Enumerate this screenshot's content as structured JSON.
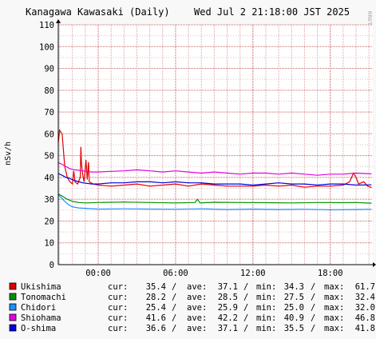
{
  "title": "Kanagawa Kawasaki (Daily)",
  "datetime": "Wed Jul  2 21:18:00 JST 2025",
  "credit": "RRDTOOL / TOBI OETIKER",
  "chart_data": {
    "type": "line",
    "title": "Kanagawa Kawasaki (Daily)",
    "ylabel": "nSv/h",
    "xlabel": "",
    "ylim": [
      0,
      110
    ],
    "yticks": [
      0,
      10,
      20,
      30,
      40,
      50,
      60,
      70,
      80,
      90,
      100,
      110
    ],
    "x_range_hours": [
      -3.1,
      21.3
    ],
    "xticks": [
      {
        "label": "00:00",
        "hour": 0
      },
      {
        "label": "06:00",
        "hour": 6
      },
      {
        "label": "12:00",
        "hour": 12
      },
      {
        "label": "18:00",
        "hour": 18
      }
    ],
    "grid": true,
    "legend_position": "bottom",
    "series": [
      {
        "name": "Ukishima",
        "color": "#e00000",
        "cur": "35.4",
        "ave": "37.1",
        "min": "34.3",
        "max": "61.7",
        "points": [
          [
            -3.1,
            56
          ],
          [
            -3.0,
            61.7
          ],
          [
            -2.8,
            60
          ],
          [
            -2.6,
            45
          ],
          [
            -2.4,
            40
          ],
          [
            -2.2,
            38
          ],
          [
            -2.0,
            37
          ],
          [
            -1.9,
            43
          ],
          [
            -1.8,
            38
          ],
          [
            -1.6,
            37
          ],
          [
            -1.4,
            40
          ],
          [
            -1.35,
            54
          ],
          [
            -1.3,
            46
          ],
          [
            -1.2,
            41
          ],
          [
            -1.1,
            38
          ],
          [
            -0.95,
            48
          ],
          [
            -0.85,
            39
          ],
          [
            -0.75,
            47
          ],
          [
            -0.7,
            38
          ],
          [
            -0.4,
            37
          ],
          [
            0,
            36.5
          ],
          [
            1,
            36
          ],
          [
            2,
            36.5
          ],
          [
            3,
            37
          ],
          [
            4,
            36
          ],
          [
            5,
            36.5
          ],
          [
            6,
            37
          ],
          [
            7,
            36
          ],
          [
            8,
            37
          ],
          [
            9,
            36.5
          ],
          [
            10,
            36
          ],
          [
            11,
            36
          ],
          [
            12,
            36
          ],
          [
            13,
            36.5
          ],
          [
            14,
            36
          ],
          [
            15,
            36.5
          ],
          [
            16,
            35.5
          ],
          [
            17,
            36
          ],
          [
            18,
            36
          ],
          [
            19,
            36.5
          ],
          [
            19.5,
            38
          ],
          [
            19.8,
            42
          ],
          [
            20.0,
            40
          ],
          [
            20.2,
            37
          ],
          [
            20.6,
            38
          ],
          [
            20.9,
            36
          ],
          [
            21.2,
            35.4
          ]
        ]
      },
      {
        "name": "Tonomachi",
        "color": "#009000",
        "cur": "28.2",
        "ave": "28.5",
        "min": "27.5",
        "max": "32.4",
        "points": [
          [
            -3.1,
            32.4
          ],
          [
            -2.8,
            31.5
          ],
          [
            -2.4,
            30
          ],
          [
            -2.0,
            29
          ],
          [
            -1.5,
            28.5
          ],
          [
            -1,
            28.3
          ],
          [
            0,
            28.5
          ],
          [
            2,
            28.7
          ],
          [
            4,
            28.5
          ],
          [
            6,
            28.3
          ],
          [
            7.5,
            28.5
          ],
          [
            7.7,
            30
          ],
          [
            7.9,
            28.3
          ],
          [
            9,
            28.6
          ],
          [
            11,
            28.5
          ],
          [
            13,
            28.4
          ],
          [
            15,
            28.3
          ],
          [
            17,
            28.5
          ],
          [
            19,
            28.4
          ],
          [
            20,
            28.5
          ],
          [
            21.2,
            28.2
          ]
        ]
      },
      {
        "name": "Chidori",
        "color": "#1e90ff",
        "cur": "25.4",
        "ave": "25.9",
        "min": "25.0",
        "max": "32.0",
        "points": [
          [
            -3.1,
            32
          ],
          [
            -2.9,
            31
          ],
          [
            -2.6,
            29
          ],
          [
            -2.3,
            27.5
          ],
          [
            -2.0,
            26.5
          ],
          [
            -1.5,
            26
          ],
          [
            -1,
            25.8
          ],
          [
            0,
            25.5
          ],
          [
            2,
            25.6
          ],
          [
            4,
            25.5
          ],
          [
            6,
            25.4
          ],
          [
            8,
            25.6
          ],
          [
            10,
            25.3
          ],
          [
            12,
            25.5
          ],
          [
            14,
            25.3
          ],
          [
            16,
            25.4
          ],
          [
            18,
            25.2
          ],
          [
            20,
            25.3
          ],
          [
            21.2,
            25.4
          ]
        ]
      },
      {
        "name": "Shiohama",
        "color": "#e000e0",
        "cur": "41.6",
        "ave": "42.2",
        "min": "40.9",
        "max": "46.8",
        "points": [
          [
            -3.1,
            46.8
          ],
          [
            -2.8,
            46
          ],
          [
            -2.5,
            45
          ],
          [
            -2.2,
            44
          ],
          [
            -1.8,
            43.5
          ],
          [
            -1.2,
            43
          ],
          [
            -0.5,
            42.5
          ],
          [
            0,
            42.5
          ],
          [
            1,
            42.8
          ],
          [
            2,
            43
          ],
          [
            3,
            43.5
          ],
          [
            4,
            43
          ],
          [
            5,
            42.5
          ],
          [
            6,
            43
          ],
          [
            7,
            42.5
          ],
          [
            8,
            42
          ],
          [
            9,
            42.5
          ],
          [
            10,
            42
          ],
          [
            11,
            41.5
          ],
          [
            12,
            42
          ],
          [
            13,
            42
          ],
          [
            14,
            41.5
          ],
          [
            15,
            42
          ],
          [
            16,
            41.5
          ],
          [
            17,
            41
          ],
          [
            18,
            41.5
          ],
          [
            19,
            41.5
          ],
          [
            20,
            42
          ],
          [
            21.2,
            41.6
          ]
        ]
      },
      {
        "name": "O-shima",
        "color": "#0000e0",
        "cur": "36.6",
        "ave": "37.1",
        "min": "35.5",
        "max": "41.8",
        "points": [
          [
            -3.1,
            41.8
          ],
          [
            -2.8,
            41
          ],
          [
            -2.5,
            40
          ],
          [
            -2.2,
            39.5
          ],
          [
            -1.8,
            38.5
          ],
          [
            -1.2,
            37.5
          ],
          [
            -0.5,
            37
          ],
          [
            0,
            37
          ],
          [
            1,
            37.5
          ],
          [
            2,
            37.5
          ],
          [
            3,
            38
          ],
          [
            4,
            38
          ],
          [
            5,
            37.5
          ],
          [
            6,
            38
          ],
          [
            7,
            37.5
          ],
          [
            8,
            37.5
          ],
          [
            9,
            37
          ],
          [
            10,
            37
          ],
          [
            11,
            37
          ],
          [
            12,
            36.5
          ],
          [
            13,
            37
          ],
          [
            14,
            37.5
          ],
          [
            15,
            37
          ],
          [
            16,
            37
          ],
          [
            17,
            36.5
          ],
          [
            18,
            37
          ],
          [
            19,
            37
          ],
          [
            20,
            36.5
          ],
          [
            21.2,
            36.6
          ]
        ]
      }
    ]
  },
  "legend_labels": {
    "cur": "cur:",
    "ave": "ave:",
    "min": "min:",
    "max": "max:",
    "sep": "/"
  }
}
